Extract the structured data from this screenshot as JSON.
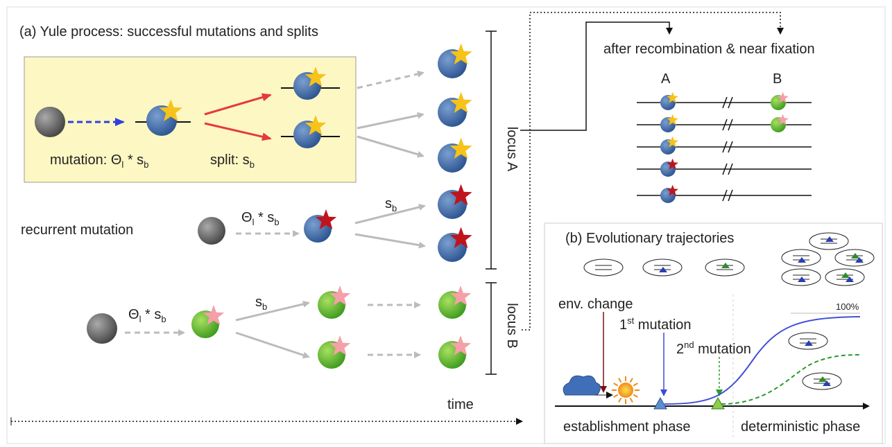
{
  "panel_a": {
    "title": "(a) Yule process: successful mutations and splits",
    "mutation_label": {
      "lead": "mutation: Θ",
      "sub1": "l",
      "mid": " * s",
      "sub2": "b"
    },
    "split_label": {
      "lead": "split: s",
      "sub": "b"
    },
    "recurrent_label": "recurrent mutation",
    "recurrent_rate": {
      "lead": "Θ",
      "sub1": "l",
      "mid": " * s",
      "sub2": "b"
    },
    "recurrent_split": {
      "lead": "s",
      "sub": "b"
    },
    "locusB_rate": {
      "lead": "Θ",
      "sub1": "l",
      "mid": " * s",
      "sub2": "b"
    },
    "locusB_split": {
      "lead": "s",
      "sub": "b"
    },
    "locus_a": "locus A",
    "locus_b": "locus B",
    "time": "time"
  },
  "recombination": {
    "title": "after recombination & near fixation",
    "col_a": "A",
    "col_b": "B"
  },
  "panel_b": {
    "title": "(b) Evolutionary trajectories",
    "env_change": "env. change",
    "first_mutation": {
      "lead": "1",
      "sup": "st",
      "rest": " mutation"
    },
    "second_mutation": {
      "lead": "2",
      "sup": "nd",
      "rest": " mutation"
    },
    "percent": "100%",
    "phase1": "establishment phase",
    "phase2": "deterministic phase"
  }
}
